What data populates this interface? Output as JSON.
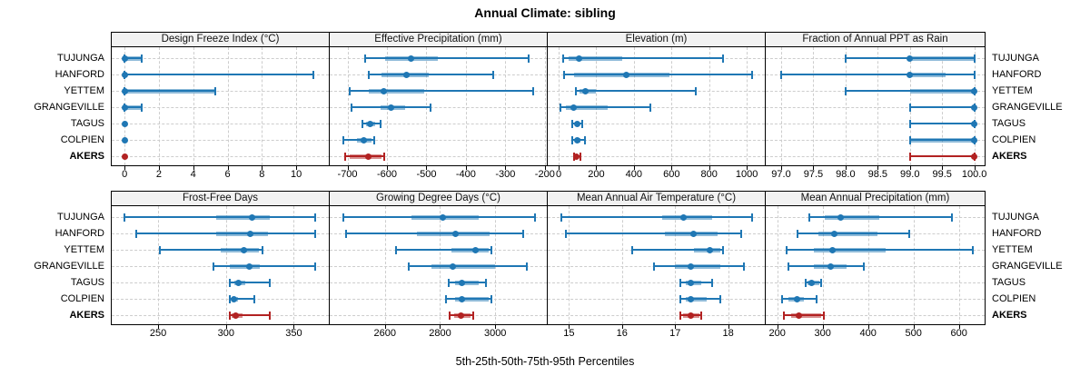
{
  "title": "Annual Climate: sibling",
  "xlabel": "5th-25th-50th-75th-95th Percentiles",
  "sites": [
    "TUJUNGA",
    "HANFORD",
    "YETTEM",
    "GRANGEVILLE",
    "TAGUS",
    "COLPIEN",
    "AKERS"
  ],
  "highlight_site": "AKERS",
  "colors": {
    "series": "#1f77b4",
    "highlight": "#b22222",
    "grid": "#cdcdcd",
    "header_bg": "#f2f2f2",
    "border": "#000000"
  },
  "chart_data": {
    "type": "dotplot-percentiles",
    "percentile_levels": [
      5,
      25,
      50,
      75,
      95
    ],
    "legend_note": "dot = 50th percentile, thick band = 25th-75th, thin line with caps = 5th-95th; AKERS highlighted in red",
    "panels": [
      {
        "title": "Design Freeze Index (°C)",
        "grid_row": 0,
        "grid_col": 0,
        "domain": [
          -0.75,
          11.9
        ],
        "ticks": [
          {
            "v": 0,
            "label": "0"
          },
          {
            "v": 2,
            "label": "2"
          },
          {
            "v": 4,
            "label": "4"
          },
          {
            "v": 6,
            "label": "6"
          },
          {
            "v": 8,
            "label": "8"
          },
          {
            "v": 10,
            "label": "10"
          }
        ],
        "series": {
          "TUJUNGA": [
            0,
            0,
            0,
            1,
            1
          ],
          "HANFORD": [
            0,
            0,
            0,
            0,
            11
          ],
          "YETTEM": [
            0,
            0,
            0,
            5.3,
            5.3
          ],
          "GRANGEVILLE": [
            0,
            0,
            0,
            1,
            1
          ],
          "TAGUS": [
            0,
            0,
            0,
            0,
            0
          ],
          "COLPIEN": [
            0,
            0,
            0,
            0,
            0
          ],
          "AKERS": [
            0,
            0,
            0,
            0,
            0
          ]
        }
      },
      {
        "title": "Effective Precipitation (mm)",
        "grid_row": 0,
        "grid_col": 1,
        "domain": [
          -745,
          -195
        ],
        "ticks": [
          {
            "v": -700,
            "label": "-700"
          },
          {
            "v": -600,
            "label": "-600"
          },
          {
            "v": -500,
            "label": "-500"
          },
          {
            "v": -400,
            "label": "-400"
          },
          {
            "v": -300,
            "label": "-300"
          },
          {
            "v": -200,
            "label": "-200"
          }
        ],
        "series": {
          "TUJUNGA": [
            -655,
            -605,
            -540,
            -470,
            -240
          ],
          "HANFORD": [
            -645,
            -613,
            -550,
            -495,
            -330
          ],
          "YETTEM": [
            -695,
            -645,
            -608,
            -505,
            -230
          ],
          "GRANGEVILLE": [
            -690,
            -615,
            -590,
            -555,
            -490
          ],
          "TAGUS": [
            -662,
            -652,
            -642,
            -630,
            -616
          ],
          "COLPIEN": [
            -710,
            -676,
            -658,
            -640,
            -632
          ],
          "AKERS": [
            -705,
            -694,
            -648,
            -614,
            -608
          ]
        }
      },
      {
        "title": "Elevation (m)",
        "grid_row": 0,
        "grid_col": 2,
        "domain": [
          -58,
          1096
        ],
        "ticks": [
          {
            "v": 0,
            "label": "0"
          },
          {
            "v": 200,
            "label": "200"
          },
          {
            "v": 400,
            "label": "400"
          },
          {
            "v": 600,
            "label": "600"
          },
          {
            "v": 800,
            "label": "800"
          },
          {
            "v": 1000,
            "label": "1000"
          }
        ],
        "series": {
          "TUJUNGA": [
            22,
            55,
            110,
            340,
            875
          ],
          "HANFORD": [
            30,
            80,
            360,
            590,
            1030
          ],
          "YETTEM": [
            90,
            110,
            140,
            200,
            730
          ],
          "GRANGEVILLE": [
            10,
            40,
            80,
            260,
            490
          ],
          "TAGUS": [
            70,
            85,
            97,
            112,
            126
          ],
          "COLPIEN": [
            70,
            88,
            98,
            115,
            142
          ],
          "AKERS": [
            80,
            86,
            92,
            105,
            118
          ]
        }
      },
      {
        "title": "Fraction of Annual PPT as Rain",
        "grid_row": 0,
        "grid_col": 3,
        "domain": [
          96.76,
          100.16
        ],
        "ticks": [
          {
            "v": 97.0,
            "label": "97.0"
          },
          {
            "v": 97.5,
            "label": "97.5"
          },
          {
            "v": 98.0,
            "label": "98.0"
          },
          {
            "v": 98.5,
            "label": "98.5"
          },
          {
            "v": 99.0,
            "label": "99.0"
          },
          {
            "v": 99.5,
            "label": "99.5"
          },
          {
            "v": 100.0,
            "label": "100.0"
          }
        ],
        "series": {
          "TUJUNGA": [
            98.0,
            99.0,
            99.0,
            100.0,
            100.0
          ],
          "HANFORD": [
            97.0,
            99.0,
            99.0,
            99.55,
            100.0
          ],
          "YETTEM": [
            98.0,
            99.0,
            100.0,
            100.0,
            100.0
          ],
          "GRANGEVILLE": [
            99.0,
            100.0,
            100.0,
            100.0,
            100.0
          ],
          "TAGUS": [
            99.0,
            100.0,
            100.0,
            100.0,
            100.0
          ],
          "COLPIEN": [
            99.0,
            99.0,
            100.0,
            100.0,
            100.0
          ],
          "AKERS": [
            99.0,
            100.0,
            100.0,
            100.0,
            100.0
          ]
        }
      },
      {
        "title": "Frost-Free Days",
        "grid_row": 1,
        "grid_col": 0,
        "domain": [
          215.8,
          375.8
        ],
        "ticks": [
          {
            "v": 250,
            "label": "250"
          },
          {
            "v": 300,
            "label": "300"
          },
          {
            "v": 350,
            "label": "350"
          }
        ],
        "series": {
          "TUJUNGA": [
            225,
            293,
            319,
            332,
            366
          ],
          "HANFORD": [
            234,
            293,
            318,
            331,
            366
          ],
          "YETTEM": [
            251,
            296,
            313,
            324,
            327
          ],
          "GRANGEVILLE": [
            291,
            303,
            317,
            325,
            366
          ],
          "TAGUS": [
            303,
            306,
            309,
            314,
            332
          ],
          "COLPIEN": [
            303,
            304,
            306,
            309,
            321
          ],
          "AKERS": [
            303,
            304,
            307,
            312,
            332
          ]
        }
      },
      {
        "title": "Growing Degree Days (°C)",
        "grid_row": 1,
        "grid_col": 1,
        "domain": [
          2400,
          3187
        ],
        "ticks": [
          {
            "v": 2600,
            "label": "2600"
          },
          {
            "v": 2800,
            "label": "2800"
          },
          {
            "v": 3000,
            "label": "3000"
          }
        ],
        "series": {
          "TUJUNGA": [
            2450,
            2695,
            2810,
            2940,
            3145
          ],
          "HANFORD": [
            2460,
            2715,
            2855,
            2980,
            3100
          ],
          "YETTEM": [
            2640,
            2840,
            2930,
            2975,
            2985
          ],
          "GRANGEVILLE": [
            2685,
            2770,
            2845,
            3000,
            3115
          ],
          "TAGUS": [
            2830,
            2855,
            2880,
            2940,
            2965
          ],
          "COLPIEN": [
            2820,
            2855,
            2880,
            2975,
            2985
          ],
          "AKERS": [
            2835,
            2850,
            2875,
            2910,
            2920
          ]
        }
      },
      {
        "title": "Mean Annual Air Temperature (°C)",
        "grid_row": 1,
        "grid_col": 2,
        "domain": [
          14.6,
          18.69
        ],
        "ticks": [
          {
            "v": 15,
            "label": "15"
          },
          {
            "v": 16,
            "label": "16"
          },
          {
            "v": 17,
            "label": "17"
          },
          {
            "v": 18,
            "label": "18"
          }
        ],
        "series": {
          "TUJUNGA": [
            14.85,
            16.75,
            17.15,
            17.7,
            18.45
          ],
          "HANFORD": [
            14.95,
            16.8,
            17.35,
            17.8,
            18.25
          ],
          "YETTEM": [
            16.2,
            17.35,
            17.65,
            17.85,
            17.9
          ],
          "GRANGEVILLE": [
            16.6,
            17.0,
            17.3,
            17.85,
            18.3
          ],
          "TAGUS": [
            17.1,
            17.2,
            17.3,
            17.5,
            17.7
          ],
          "COLPIEN": [
            17.1,
            17.2,
            17.3,
            17.6,
            17.85
          ],
          "AKERS": [
            17.1,
            17.15,
            17.3,
            17.45,
            17.5
          ]
        }
      },
      {
        "title": "Mean Annual Precipitation (mm)",
        "grid_row": 1,
        "grid_col": 3,
        "domain": [
          174.6,
          656.6
        ],
        "ticks": [
          {
            "v": 200,
            "label": "200"
          },
          {
            "v": 300,
            "label": "300"
          },
          {
            "v": 400,
            "label": "400"
          },
          {
            "v": 500,
            "label": "500"
          },
          {
            "v": 600,
            "label": "600"
          }
        ],
        "series": {
          "TUJUNGA": [
            270,
            305,
            340,
            425,
            585
          ],
          "HANFORD": [
            245,
            290,
            325,
            420,
            490
          ],
          "YETTEM": [
            220,
            280,
            322,
            438,
            630
          ],
          "GRANGEVILLE": [
            225,
            280,
            317,
            352,
            390
          ],
          "TAGUS": [
            262,
            266,
            275,
            292,
            297
          ],
          "COLPIEN": [
            210,
            225,
            243,
            258,
            287
          ],
          "AKERS": [
            214,
            231,
            247,
            296,
            302
          ]
        }
      }
    ]
  }
}
